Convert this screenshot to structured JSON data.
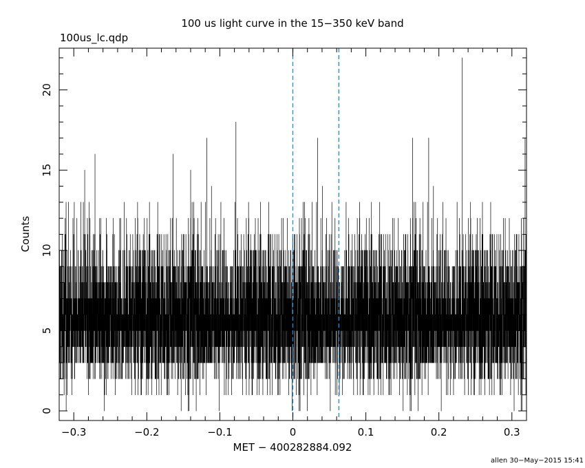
{
  "chart_data": {
    "type": "line",
    "title": "100 us light curve in the 15−350 keV band",
    "file_label": "100us_lc.qdp",
    "xlabel": "MET − 400282884.092",
    "ylabel": "Counts",
    "footer": "allen 30−May−2015 15:41",
    "xlim": [
      -0.32,
      0.32
    ],
    "ylim": [
      -0.6,
      22.6
    ],
    "x_ticks": [
      -0.3,
      -0.2,
      -0.1,
      0,
      0.1,
      0.2,
      0.3
    ],
    "x_tick_labels": [
      "−0.3",
      "−0.2",
      "−0.1",
      "0",
      "0.1",
      "0.2",
      "0.3"
    ],
    "y_ticks": [
      0,
      5,
      10,
      15,
      20
    ],
    "y_tick_labels": [
      "0",
      "5",
      "10",
      "15",
      "20"
    ],
    "bin_width": 0.0001,
    "mean_counts": 6,
    "series": [
      {
        "values_note_omitted": true,
        "spikes": [
          [
            -0.271,
            16
          ],
          [
            -0.078,
            18
          ],
          [
            0.164,
            17
          ],
          [
            0.232,
            22
          ],
          [
            0.318,
            17
          ],
          [
            -0.164,
            16
          ],
          [
            -0.14,
            15
          ],
          [
            0.32,
            15
          ]
        ]
      }
    ],
    "vlines": [
      {
        "x": 0.0,
        "color": "#1a8fd6",
        "style": "dashed"
      },
      {
        "x": 0.063,
        "color": "#1a8fd6",
        "style": "dashed"
      }
    ],
    "grid": false
  }
}
